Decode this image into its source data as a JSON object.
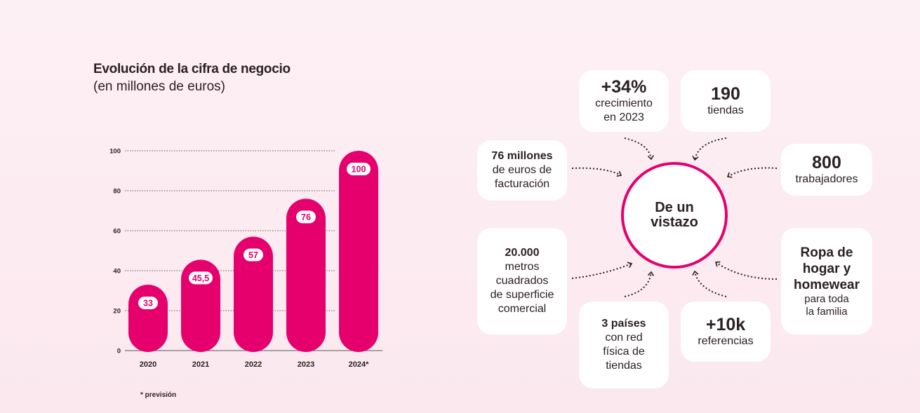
{
  "header": {
    "title": "Evolución de la cifra de negocio",
    "subtitle": "(en millones de euros)"
  },
  "chart_data": {
    "type": "bar",
    "categories": [
      "2020",
      "2021",
      "2022",
      "2023",
      "2024*"
    ],
    "values": [
      33,
      45.5,
      57,
      76,
      100
    ],
    "value_labels": [
      "33",
      "45,5",
      "57",
      "76",
      "100"
    ],
    "yticks": [
      "100",
      "80",
      "60",
      "40",
      "20",
      "0"
    ],
    "ylim": [
      0,
      100
    ],
    "grid": true,
    "bar_color": "#e6006e"
  },
  "footnote": "* previsión",
  "summary": {
    "center": "De un vistazo",
    "growth": {
      "value": "+34%",
      "line1": "crecimiento",
      "line2": "en 2023"
    },
    "stores": {
      "value": "190",
      "label": "tiendas"
    },
    "revenue": {
      "line1": "76 millones",
      "line2": "de euros de",
      "line3": "facturación"
    },
    "employees": {
      "value": "800",
      "label": "trabajadores"
    },
    "area": {
      "line1": "20.000",
      "line2": "metros",
      "line3": "cuadrados",
      "line4": "de superficie",
      "line5": "comercial"
    },
    "products": {
      "line1": "Ropa de",
      "line2": "hogar y",
      "line3": "homewear",
      "line4": "para toda",
      "line5": "la familia"
    },
    "countries": {
      "line1": "3 países",
      "line2": "con red",
      "line3": "física de",
      "line4": "tiendas"
    },
    "references": {
      "value": "+10k",
      "label": "referencias"
    }
  },
  "colors": {
    "accent": "#e6006e",
    "text": "#2b2024"
  }
}
